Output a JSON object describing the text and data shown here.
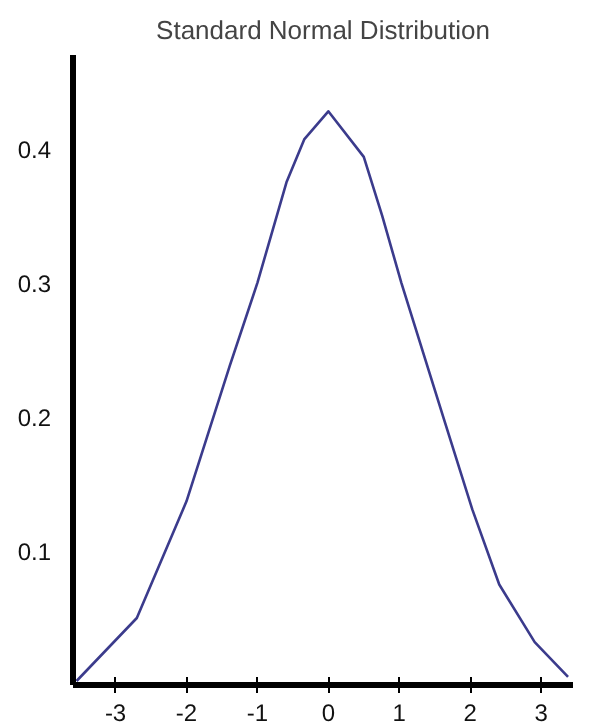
{
  "chart_data": {
    "type": "line",
    "title": "Standard Normal Distribution",
    "x": [
      -3.55,
      -2.7,
      -2,
      -1.39,
      -1,
      -0.59,
      -0.34,
      0,
      0.5,
      0.76,
      1.03,
      1.62,
      2.03,
      2.41,
      2.91,
      3.38
    ],
    "series": [
      {
        "color": "#3b3b8c",
        "values": [
          0.003,
          0.05,
          0.137,
          0.238,
          0.3,
          0.375,
          0.407,
          0.428,
          0.394,
          0.35,
          0.3,
          0.2,
          0.131,
          0.075,
          0.032,
          0.006
        ]
      }
    ],
    "xlim": [
      -3.6,
      3.45
    ],
    "ylim": [
      0,
      0.47
    ],
    "xticks": [
      -3,
      -2,
      -1,
      0,
      1,
      2,
      3
    ],
    "yticks": [
      0.1,
      0.2,
      0.3,
      0.4
    ],
    "grid": false
  }
}
